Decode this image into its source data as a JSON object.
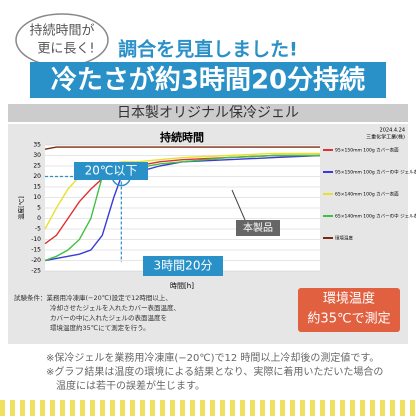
{
  "badge": [
    "持続時間が",
    "更に長く!"
  ],
  "headline": "調合を見直しました!",
  "banner": "冷たさが約3時間20分持続",
  "product_label": "日本製オリジナル保冷ジェル",
  "test_conditions": [
    "試験条件：業務用冷凍庫(−20℃)設定で12時間以上、",
    "冷却させたジェルを入れたカバー表面温度、",
    "カバーの中に入れたジェルの表面温度を",
    "環境温度約35℃にて測定を行う。"
  ],
  "note": [
    "環境温度",
    "約35℃で測定"
  ],
  "footnotes": [
    "※保冷ジェルを業務用冷凍庫(−20℃)で12 時間以上冷却後の測定値です。",
    "※グラフ結果は温度の環境による結果となり、実際に着用いただいた場合の",
    "温度には若干の誤差が生じます。"
  ],
  "chart_data": {
    "type": "line",
    "title": "持続時間",
    "date": "2024.4.24",
    "source": "三重化学工業(株)",
    "x_label": "時間[h]",
    "y_label": "温度[℃]",
    "x": [
      0,
      0.5,
      1,
      1.5,
      2,
      2.5,
      3,
      3.33,
      4,
      5,
      6,
      8,
      10,
      12
    ],
    "xlim": [
      0,
      12
    ],
    "ylim": [
      -25,
      35
    ],
    "yticks": [
      -25,
      -20,
      -15,
      -10,
      -5,
      0,
      5,
      10,
      15,
      20,
      25,
      30,
      35
    ],
    "grid": true,
    "ref_y": 20,
    "ref_x": 3.33,
    "annotations": {
      "threshold": "20℃以下",
      "duration": "3時間20分",
      "product": "本製品"
    },
    "series": [
      {
        "name": "95×150mm 100g カバー表面",
        "color": "#e03030",
        "values": [
          -12,
          -8,
          0,
          8,
          14,
          19,
          23,
          24,
          25,
          27,
          28,
          29,
          30,
          30
        ]
      },
      {
        "name": "95×150mm 100g カバーの中 ジェル表面",
        "color": "#3a3ad8",
        "values": [
          -20,
          -19,
          -18,
          -17,
          -15,
          -8,
          10,
          20,
          22,
          25,
          27,
          28,
          29,
          30
        ]
      },
      {
        "name": "65×140mm 100g カバー表面",
        "color": "#e8e030",
        "values": [
          -5,
          5,
          14,
          20,
          23,
          25,
          26,
          27,
          27,
          28,
          29,
          30,
          31,
          31
        ]
      },
      {
        "name": "65×140mm 100g カバーの中 ジェル表面",
        "color": "#40c040",
        "values": [
          -20,
          -18,
          -15,
          -10,
          0,
          20,
          22,
          23,
          24,
          26,
          27,
          29,
          30,
          30
        ]
      },
      {
        "name": "環境温度",
        "color": "#7a2a10",
        "values": [
          33,
          34,
          34,
          34,
          34,
          34,
          34,
          34,
          34,
          34,
          34,
          34,
          34,
          34
        ]
      }
    ]
  }
}
